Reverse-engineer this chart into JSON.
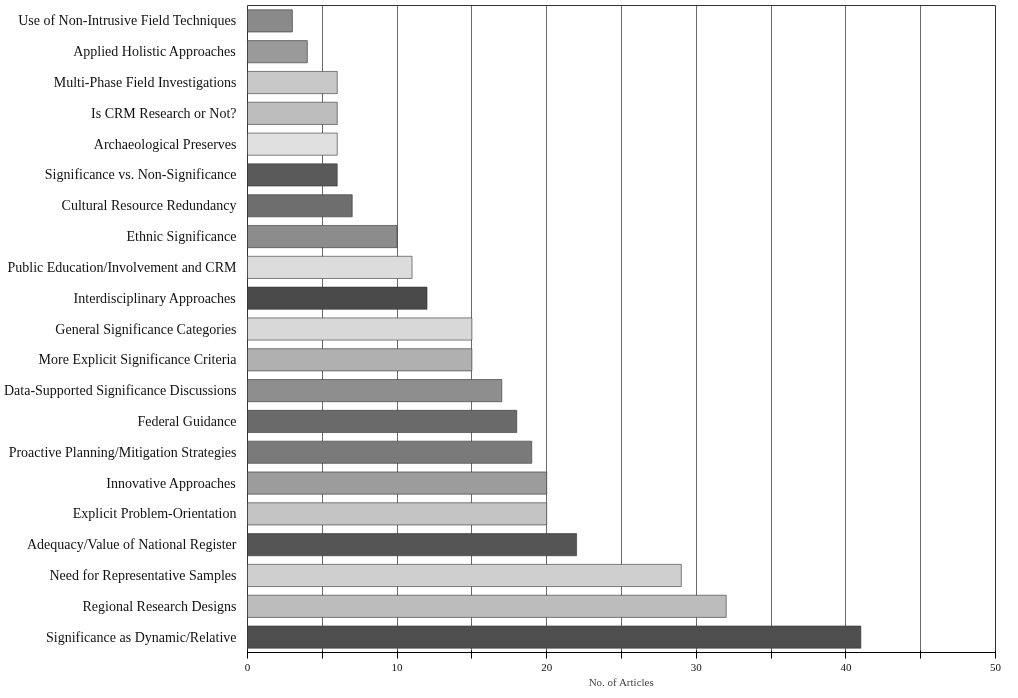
{
  "chart_data": {
    "type": "bar",
    "orientation": "horizontal",
    "xlabel": "No. of Articles",
    "categories": [
      "Use of Non-Intrusive Field Techniques",
      "Applied Holistic Approaches",
      "Multi-Phase Field Investigations",
      "Is CRM Research or Not?",
      "Archaeological Preserves",
      "Significance vs. Non-Significance",
      "Cultural Resource Redundancy",
      "Ethnic Significance",
      "Public Education/Involvement and CRM",
      "Interdisciplinary Approaches",
      "General Significance Categories",
      "More Explicit Significance Criteria",
      "Data-Supported Significance Discussions",
      "Federal Guidance",
      "Proactive Planning/Mitigation Strategies",
      "Innovative Approaches",
      "Explicit Problem-Orientation",
      "Adequacy/Value of National Register",
      "Need for Representative Samples",
      "Regional Research Designs",
      "Significance as Dynamic/Relative"
    ],
    "values": [
      3,
      4,
      6,
      6,
      6,
      6,
      7,
      10,
      11,
      12,
      15,
      15,
      17,
      18,
      19,
      20,
      20,
      22,
      29,
      32,
      41
    ],
    "colors": [
      "#8a8a8a",
      "#9a9a9a",
      "#c8c8c8",
      "#bdbdbd",
      "#e0e0e0",
      "#5a5a5a",
      "#6e6e6e",
      "#8c8c8c",
      "#dcdcdc",
      "#4a4a4a",
      "#d8d8d8",
      "#b0b0b0",
      "#8e8e8e",
      "#6a6a6a",
      "#7a7a7a",
      "#9c9c9c",
      "#c4c4c4",
      "#555555",
      "#cfcfcf",
      "#bcbcbc",
      "#4e4e4e"
    ],
    "xlim": [
      0,
      50
    ],
    "xticks": [
      0,
      {
        "value": 5,
        "label": null
      },
      10,
      {
        "value": 15,
        "label": null
      },
      20,
      {
        "value": 25,
        "label": null
      },
      30,
      {
        "value": 35,
        "label": null
      },
      40,
      {
        "value": 45,
        "label": null
      },
      50
    ],
    "grid": "x"
  }
}
